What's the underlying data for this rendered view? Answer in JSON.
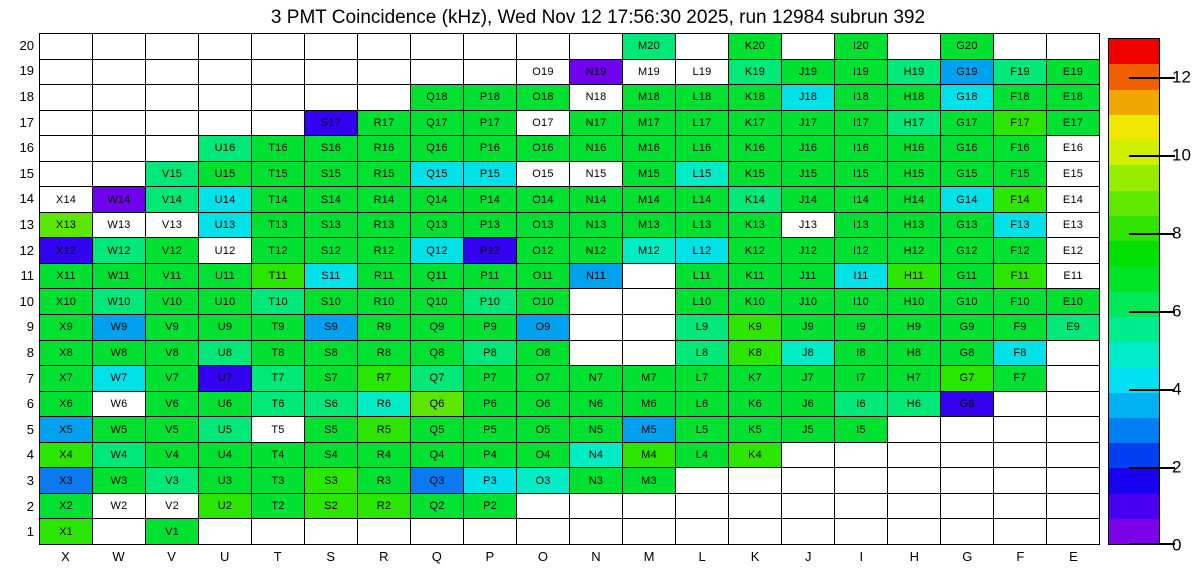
{
  "title": "3 PMT Coincidence (kHz), Wed Nov 12 17:56:30 2025, run 12984 subrun 392",
  "chart_data": {
    "type": "heatmap",
    "title": "3 PMT Coincidence (kHz), Wed Nov 12 17:56:30 2025, run 12984 subrun 392",
    "x_categories": [
      "X",
      "W",
      "V",
      "U",
      "T",
      "S",
      "R",
      "Q",
      "P",
      "O",
      "N",
      "M",
      "L",
      "K",
      "J",
      "I",
      "H",
      "G",
      "F",
      "E"
    ],
    "y_categories": [
      20,
      19,
      18,
      17,
      16,
      15,
      14,
      13,
      12,
      11,
      10,
      9,
      8,
      7,
      6,
      5,
      4,
      3,
      2,
      1
    ],
    "grid": true,
    "background": "#FFFFFF",
    "grid_line_color": "#000000",
    "colorbar": {
      "min": 0,
      "max": 13,
      "ticks": [
        0,
        2,
        4,
        6,
        8,
        10,
        12
      ],
      "bands_bottom_to_top": [
        "#7C00E8",
        "#4A00F0",
        "#1800F0",
        "#0040F0",
        "#0080F0",
        "#00B0F0",
        "#00E0F0",
        "#00ECC8",
        "#00EC90",
        "#00E858",
        "#00E428",
        "#00E000",
        "#30E400",
        "#60E800",
        "#98EC00",
        "#D0F000",
        "#F0E800",
        "#F0A800",
        "#F06000",
        "#EE0000"
      ]
    },
    "value_colors": {
      "g": "#00E132",
      "g2": "#2AE600",
      "ch": "#5CE600",
      "sg": "#00E878",
      "tl": "#00ECC4",
      "cy": "#00E2E8",
      "bl": "#00A2F0",
      "bl2": "#0B79F0",
      "iv": "#3400F0",
      "vi": "#7000EE",
      "w": "#FFFFFF"
    },
    "cells": {
      "20": {
        "M": "sg",
        "K": "g",
        "I": "g",
        "G": "g"
      },
      "19": {
        "O": "w",
        "N": "vi",
        "M": "w",
        "L": "w",
        "K": "sg",
        "J": "g",
        "I": "g",
        "H": "sg",
        "G": "bl",
        "F": "sg",
        "E": "g"
      },
      "18": {
        "Q": "g",
        "P": "g",
        "O": "g",
        "N": "w",
        "M": "g",
        "L": "g",
        "K": "g",
        "J": "cy",
        "I": "g",
        "H": "g",
        "G": "cy",
        "F": "g",
        "E": "g"
      },
      "17": {
        "S": "iv",
        "R": "g",
        "Q": "g",
        "P": "g",
        "O": "w",
        "N": "g",
        "M": "g",
        "L": "g",
        "K": "g",
        "J": "g",
        "I": "g",
        "H": "sg",
        "G": "g",
        "F": "g2",
        "E": "g"
      },
      "16": {
        "U": "sg",
        "T": "g",
        "S": "g",
        "R": "g",
        "Q": "g",
        "P": "g",
        "O": "g",
        "N": "g",
        "M": "g",
        "L": "g",
        "K": "g",
        "J": "g",
        "I": "g",
        "H": "g",
        "G": "g",
        "F": "g",
        "E": "w"
      },
      "15": {
        "V": "sg",
        "U": "g",
        "T": "g",
        "S": "g",
        "R": "g",
        "Q": "cy",
        "P": "cy",
        "O": "w",
        "N": "w",
        "M": "g",
        "L": "tl",
        "K": "g",
        "J": "g",
        "I": "g",
        "H": "g",
        "G": "g",
        "F": "g",
        "E": "w"
      },
      "14": {
        "X": "w",
        "W": "vi",
        "V": "sg",
        "U": "cy",
        "T": "g",
        "S": "g",
        "R": "g",
        "Q": "g",
        "P": "g",
        "O": "g",
        "N": "g",
        "M": "g",
        "L": "g",
        "K": "sg",
        "J": "g",
        "I": "g",
        "H": "g",
        "G": "cy",
        "F": "g2",
        "E": "w"
      },
      "13": {
        "X": "ch",
        "W": "w",
        "V": "w",
        "U": "cy",
        "T": "g",
        "S": "g",
        "R": "g",
        "Q": "g",
        "P": "g",
        "O": "g",
        "N": "g",
        "M": "g",
        "L": "g",
        "K": "g",
        "J": "w",
        "I": "g",
        "H": "g",
        "G": "g",
        "F": "cy",
        "E": "w"
      },
      "12": {
        "X": "iv",
        "W": "sg",
        "V": "g",
        "U": "w",
        "T": "g",
        "S": "g",
        "R": "g",
        "Q": "cy",
        "P": "iv",
        "O": "g",
        "N": "g",
        "M": "tl",
        "L": "cy",
        "K": "g",
        "J": "g",
        "I": "g",
        "H": "g",
        "G": "g",
        "F": "g",
        "E": "w"
      },
      "11": {
        "X": "g",
        "W": "g",
        "V": "g",
        "U": "g",
        "T": "g2",
        "S": "cy",
        "R": "g",
        "Q": "g",
        "P": "g",
        "O": "g",
        "N": "bl",
        "L": "g",
        "K": "g",
        "J": "g",
        "I": "cy",
        "H": "g2",
        "G": "g",
        "F": "g2",
        "E": "w"
      },
      "10": {
        "X": "g",
        "W": "sg",
        "V": "g",
        "U": "g",
        "T": "sg",
        "S": "g",
        "R": "g",
        "Q": "g",
        "P": "sg",
        "O": "g",
        "L": "g",
        "K": "g",
        "J": "g",
        "I": "g",
        "H": "g",
        "G": "g",
        "F": "g",
        "E": "g"
      },
      "9": {
        "X": "g",
        "W": "bl",
        "V": "g",
        "U": "g",
        "T": "g",
        "S": "bl",
        "R": "g",
        "Q": "g",
        "P": "g",
        "O": "bl",
        "L": "sg",
        "K": "g2",
        "J": "g",
        "I": "g",
        "H": "g",
        "G": "g",
        "F": "g",
        "E": "sg"
      },
      "8": {
        "X": "g",
        "W": "g",
        "V": "g",
        "U": "sg",
        "T": "g",
        "S": "g",
        "R": "g",
        "Q": "g",
        "P": "sg",
        "O": "g",
        "L": "sg",
        "K": "g2",
        "J": "tl",
        "I": "g",
        "H": "g",
        "G": "g",
        "F": "cy"
      },
      "7": {
        "X": "g",
        "W": "cy",
        "V": "g",
        "U": "iv",
        "T": "sg",
        "S": "g",
        "R": "g2",
        "Q": "sg",
        "P": "g",
        "O": "g",
        "N": "g",
        "M": "g",
        "L": "g",
        "K": "g",
        "J": "g",
        "I": "g",
        "H": "g",
        "G": "g2",
        "F": "g"
      },
      "6": {
        "X": "g",
        "W": "w",
        "V": "g",
        "U": "g",
        "T": "sg",
        "S": "sg",
        "R": "tl",
        "Q": "ch",
        "P": "g",
        "O": "g",
        "N": "g",
        "M": "g",
        "L": "g",
        "K": "g",
        "J": "g",
        "I": "sg",
        "H": "sg",
        "G": "iv"
      },
      "5": {
        "X": "bl",
        "W": "g",
        "V": "g",
        "U": "sg",
        "T": "w",
        "S": "g",
        "R": "g2",
        "Q": "g",
        "P": "g",
        "O": "g",
        "N": "g",
        "M": "bl",
        "L": "g",
        "K": "g",
        "J": "g",
        "I": "g"
      },
      "4": {
        "X": "g2",
        "W": "sg",
        "V": "g",
        "U": "g",
        "T": "g",
        "S": "g",
        "R": "g",
        "Q": "g",
        "P": "g",
        "O": "g",
        "N": "tl",
        "M": "g2",
        "L": "g",
        "K": "g2"
      },
      "3": {
        "X": "bl2",
        "W": "g",
        "V": "sg",
        "U": "g",
        "T": "g",
        "S": "g2",
        "R": "g",
        "Q": "bl2",
        "P": "cy",
        "O": "tl",
        "N": "g",
        "M": "g"
      },
      "2": {
        "X": "g",
        "W": "w",
        "V": "w",
        "U": "g2",
        "T": "g",
        "S": "g2",
        "R": "g2",
        "Q": "g",
        "P": "g"
      },
      "1": {
        "X": "g2",
        "V": "g"
      }
    }
  }
}
